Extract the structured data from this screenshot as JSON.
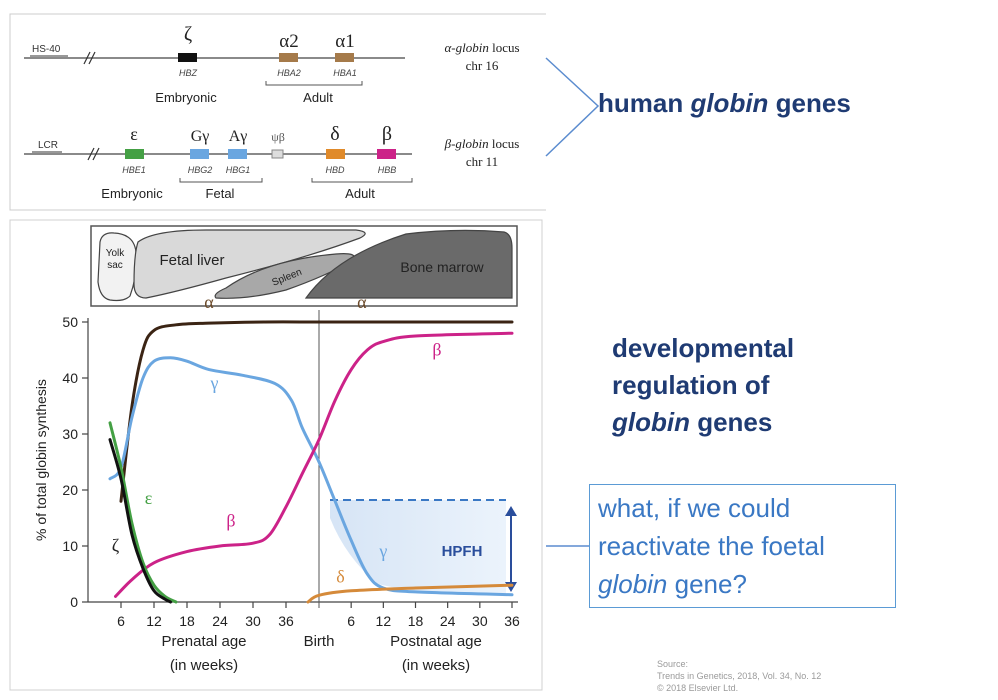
{
  "top_panel": {
    "alpha_locus": {
      "hs40": "HS-40",
      "genes": [
        {
          "greek": "ζ",
          "name": "HBZ",
          "color": "#111111"
        },
        {
          "greek": "α2",
          "name": "HBA2",
          "color": "#a57a4a"
        },
        {
          "greek": "α1",
          "name": "HBA1",
          "color": "#a57a4a"
        }
      ],
      "embryonic": "Embryonic",
      "adult": "Adult",
      "locus_italic": "α-globin",
      "locus_rest": " locus",
      "chr": "chr 16"
    },
    "beta_locus": {
      "lcr": "LCR",
      "genes": [
        {
          "greek": "ε",
          "name": "HBE1",
          "color": "#44a044"
        },
        {
          "greek": "Gγ",
          "name": "HBG2",
          "color": "#6aa6e0"
        },
        {
          "greek": "Aγ",
          "name": "HBG1",
          "color": "#6aa6e0"
        },
        {
          "greek": "ψβ",
          "name": "",
          "color": "#dddddd"
        },
        {
          "greek": "δ",
          "name": "HBD",
          "color": "#e08a2a"
        },
        {
          "greek": "β",
          "name": "HBB",
          "color": "#cc2288"
        }
      ],
      "embryonic": "Embryonic",
      "fetal": "Fetal",
      "adult": "Adult",
      "locus_italic": "β-globin",
      "locus_rest": " locus",
      "chr": "chr 11"
    }
  },
  "callout": {
    "title_part1": "human ",
    "title_italic": "globin",
    "title_part2": " genes"
  },
  "development": {
    "line1": "developmental",
    "line2": "regulation of",
    "line3_italic": "globin",
    "line3_rest": " genes"
  },
  "question": {
    "line1": "what, if we could",
    "line2": "reactivate the foetal",
    "line3_italic": "globin",
    "line3_rest": " gene?"
  },
  "source": {
    "line1": "Source:",
    "line2": "Trends in Genetics, 2018, Vol. 34, No. 12",
    "line3": "© 2018 Elsevier Ltd."
  },
  "organs": {
    "yolk_line1": "Yolk",
    "yolk_line2": "sac",
    "fetal_liver": "Fetal liver",
    "spleen": "Spleen",
    "bone_marrow": "Bone marrow"
  },
  "chart_data": {
    "type": "line",
    "ylabel": "% of total globin synthesis",
    "ylim": [
      0,
      50
    ],
    "yticks": [
      "0",
      "10",
      "20",
      "30",
      "40",
      "50"
    ],
    "x_ticks_prenatal": [
      "6",
      "12",
      "18",
      "24",
      "30",
      "36"
    ],
    "x_ticks_postnatal": [
      "6",
      "12",
      "18",
      "24",
      "30",
      "36"
    ],
    "xlabel_prenatal_1": "Prenatal age",
    "xlabel_prenatal_2": "(in weeks)",
    "xlabel_birth": "Birth",
    "xlabel_postnatal_1": "Postnatal age",
    "xlabel_postnatal_2": "(in weeks)",
    "annotation": "HPFH",
    "series": [
      {
        "name": "α",
        "color": "#3b2414",
        "points": [
          [
            -36,
            18
          ],
          [
            -34,
            35
          ],
          [
            -32,
            45
          ],
          [
            -30,
            48.5
          ],
          [
            -26,
            49.5
          ],
          [
            -20,
            49.8
          ],
          [
            -10,
            50
          ],
          [
            0,
            50
          ],
          [
            10,
            50
          ],
          [
            36,
            50
          ]
        ]
      },
      {
        "name": "γ",
        "color": "#6aa6e0",
        "points": [
          [
            -38,
            22
          ],
          [
            -36,
            24
          ],
          [
            -34,
            33
          ],
          [
            -32,
            40
          ],
          [
            -30,
            43
          ],
          [
            -27,
            43.6
          ],
          [
            -24,
            43
          ],
          [
            -20,
            41.5
          ],
          [
            -14,
            40.5
          ],
          [
            -8,
            39
          ],
          [
            -5,
            36
          ],
          [
            -3,
            31
          ],
          [
            0,
            25
          ],
          [
            3,
            18
          ],
          [
            6,
            11
          ],
          [
            9,
            5
          ],
          [
            12,
            2.5
          ],
          [
            18,
            1.8
          ],
          [
            36,
            1.3
          ]
        ]
      },
      {
        "name": "β",
        "color": "#cc2288",
        "points": [
          [
            -37,
            1
          ],
          [
            -34,
            4
          ],
          [
            -30,
            7
          ],
          [
            -24,
            9
          ],
          [
            -18,
            10
          ],
          [
            -12,
            10.5
          ],
          [
            -9,
            12
          ],
          [
            -6,
            17
          ],
          [
            -3,
            23
          ],
          [
            0,
            29
          ],
          [
            3,
            36
          ],
          [
            6,
            41.5
          ],
          [
            9,
            45
          ],
          [
            12,
            46.5
          ],
          [
            18,
            47.5
          ],
          [
            36,
            48
          ]
        ]
      },
      {
        "name": "ε",
        "color": "#44a044",
        "points": [
          [
            -38,
            32
          ],
          [
            -36,
            24
          ],
          [
            -34,
            14
          ],
          [
            -32,
            7
          ],
          [
            -30,
            3
          ],
          [
            -28,
            1
          ],
          [
            -26,
            0
          ]
        ]
      },
      {
        "name": "ζ",
        "color": "#111111",
        "points": [
          [
            -38,
            29
          ],
          [
            -36,
            22
          ],
          [
            -34,
            12
          ],
          [
            -32,
            6
          ],
          [
            -30,
            2
          ],
          [
            -28,
            0.5
          ],
          [
            -27,
            0
          ]
        ]
      },
      {
        "name": "δ",
        "color": "#d58a3a",
        "points": [
          [
            -2,
            0
          ],
          [
            0,
            1.2
          ],
          [
            6,
            2
          ],
          [
            18,
            2.5
          ],
          [
            36,
            3
          ]
        ]
      }
    ]
  }
}
